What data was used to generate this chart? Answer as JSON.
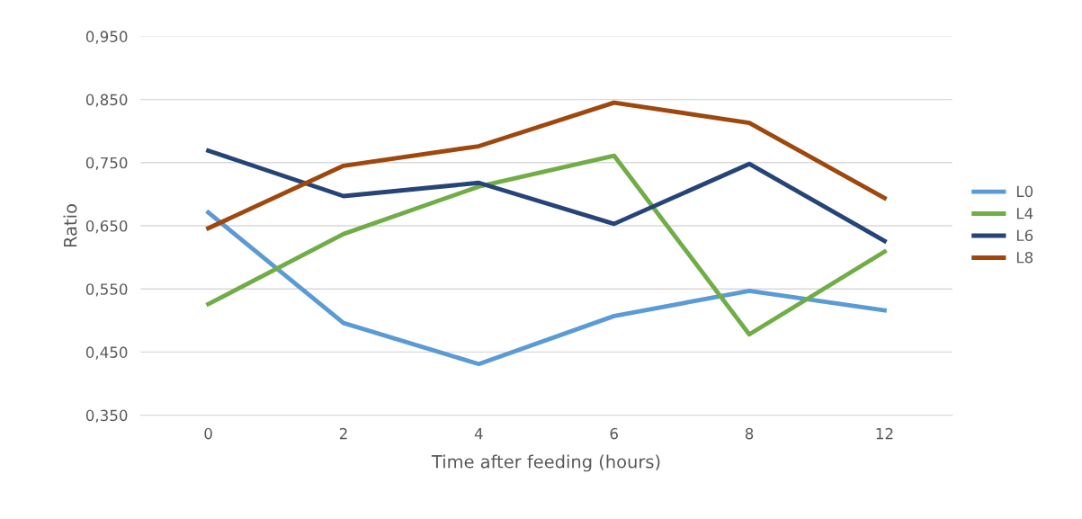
{
  "chart_data": {
    "type": "line",
    "xlabel": "Time after feeding (hours)",
    "ylabel": "Ratio",
    "categories": [
      "0",
      "2",
      "4",
      "6",
      "8",
      "12"
    ],
    "series": [
      {
        "name": "L0",
        "color": "#5b9bd5",
        "values": [
          0.671,
          0.496,
          0.431,
          0.507,
          0.547,
          0.516
        ]
      },
      {
        "name": "L4",
        "color": "#70ad47",
        "values": [
          0.526,
          0.637,
          0.712,
          0.761,
          0.478,
          0.609
        ]
      },
      {
        "name": "L6",
        "color": "#264478",
        "values": [
          0.769,
          0.697,
          0.718,
          0.653,
          0.748,
          0.626
        ]
      },
      {
        "name": "L8",
        "color": "#9e480e",
        "values": [
          0.646,
          0.745,
          0.776,
          0.845,
          0.813,
          0.694
        ]
      }
    ],
    "ylim": [
      0.35,
      0.95
    ],
    "yticks": [
      {
        "value": 0.35,
        "label": "0,350"
      },
      {
        "value": 0.45,
        "label": "0,450"
      },
      {
        "value": 0.55,
        "label": "0,550"
      },
      {
        "value": 0.65,
        "label": "0,650"
      },
      {
        "value": 0.75,
        "label": "0,750"
      },
      {
        "value": 0.85,
        "label": "0,850"
      },
      {
        "value": 0.95,
        "label": "0,950"
      }
    ],
    "grid": "y",
    "legend": "right",
    "marker": "none",
    "line_style": "solid"
  }
}
